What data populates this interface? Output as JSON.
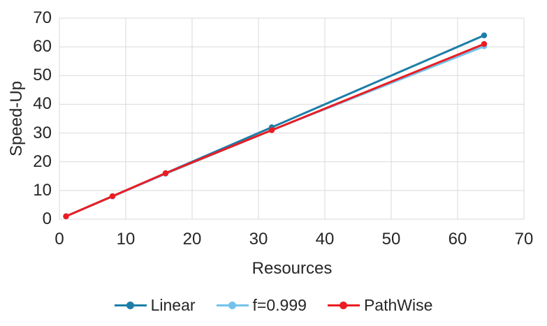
{
  "chart_data": {
    "type": "line",
    "title": "",
    "xlabel": "Resources",
    "ylabel": "Speed-Up",
    "xlim": [
      0,
      70
    ],
    "ylim": [
      0,
      70
    ],
    "xticks": [
      0,
      10,
      20,
      30,
      40,
      50,
      60,
      70
    ],
    "yticks": [
      0,
      10,
      20,
      30,
      40,
      50,
      60,
      70
    ],
    "grid": true,
    "grid_color": "#d9d9d9",
    "text_color": "#262626",
    "legend_position": "bottom",
    "x": [
      1,
      8,
      16,
      32,
      64
    ],
    "series": [
      {
        "name": "Linear",
        "values": [
          1,
          8,
          16,
          32,
          64
        ],
        "color": "#1c7ea8"
      },
      {
        "name": "f=0.999",
        "values": [
          1,
          7.9,
          15.8,
          31,
          60.2
        ],
        "color": "#72c3ec"
      },
      {
        "name": "PathWise",
        "values": [
          1,
          8,
          16,
          31,
          61
        ],
        "color": "#eb1c22"
      }
    ]
  }
}
